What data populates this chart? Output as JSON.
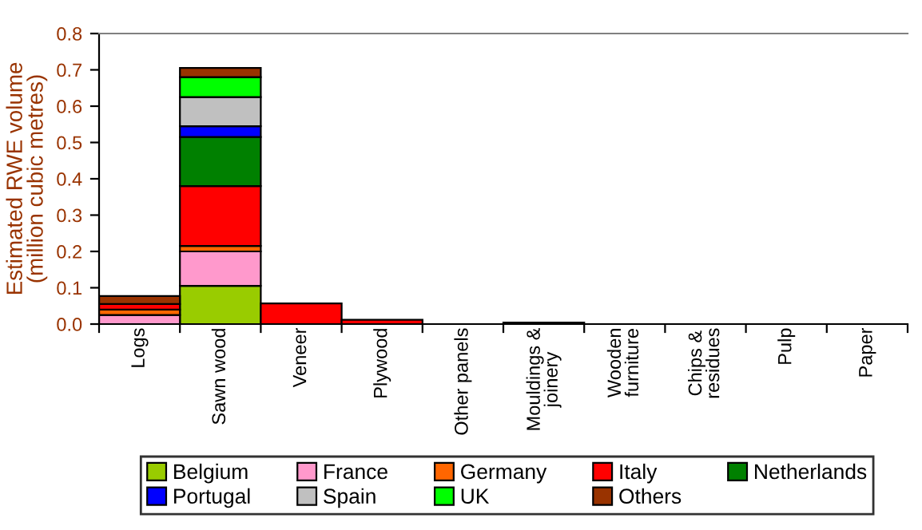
{
  "chart_data": {
    "type": "bar",
    "stacked": true,
    "ylabel": "Estimated RWE volume\n(million cubic metres)",
    "categories": [
      "Logs",
      "Sawn wood",
      "Veneer",
      "Plywood",
      "Other panels",
      "Mouldings &\njoinery",
      "Wooden\nfurniture",
      "Chips &\nresidues",
      "Pulp",
      "Paper"
    ],
    "series": [
      {
        "name": "Belgium",
        "color": "#99cc00",
        "values": [
          null,
          0.105,
          0,
          0,
          0,
          0,
          0,
          0,
          0,
          0
        ]
      },
      {
        "name": "France",
        "color": "#ff99cc",
        "values": [
          0.025,
          0.095,
          0,
          0,
          0,
          0,
          0,
          0,
          0,
          0
        ]
      },
      {
        "name": "Germany",
        "color": "#ff6600",
        "values": [
          0.015,
          0.015,
          0,
          0,
          0,
          0,
          0,
          0,
          0,
          0
        ]
      },
      {
        "name": "Italy",
        "color": "#ff0000",
        "values": [
          0.015,
          0.165,
          0.057,
          0.012,
          0,
          0,
          0,
          0,
          0,
          0
        ]
      },
      {
        "name": "Netherlands",
        "color": "#008000",
        "values": [
          0,
          0.135,
          0,
          0,
          0,
          0,
          0,
          0,
          0,
          0
        ]
      },
      {
        "name": "Portugal",
        "color": "#0000ff",
        "values": [
          0,
          0.03,
          0,
          0,
          0,
          0,
          0,
          0,
          0,
          0
        ]
      },
      {
        "name": "Spain",
        "color": "#c0c0c0",
        "values": [
          0,
          0.08,
          0,
          0,
          0,
          0,
          0,
          0,
          0,
          0
        ]
      },
      {
        "name": "UK",
        "color": "#00ff00",
        "values": [
          0,
          0.055,
          0,
          0,
          0,
          0,
          0,
          0,
          0,
          0
        ]
      },
      {
        "name": "Others",
        "color": "#993300",
        "values": [
          0.022,
          0.025,
          0,
          0,
          0,
          0.004,
          0,
          0,
          0,
          0
        ]
      }
    ],
    "ylim": [
      0,
      0.8
    ],
    "yticks": [
      {
        "value": 0,
        "label": "0.0"
      },
      {
        "value": 0.1,
        "label": "0.1"
      },
      {
        "value": 0.2,
        "label": "0.2"
      },
      {
        "value": 0.3,
        "label": "0.3"
      },
      {
        "value": 0.4,
        "label": "0.4"
      },
      {
        "value": 0.5,
        "label": "0.5"
      },
      {
        "value": 0.6,
        "label": "0.6"
      },
      {
        "value": 0.7,
        "label": "0.7"
      },
      {
        "value": 0.8,
        "label": "0.8"
      }
    ],
    "grid": false,
    "legend": "bottom"
  }
}
